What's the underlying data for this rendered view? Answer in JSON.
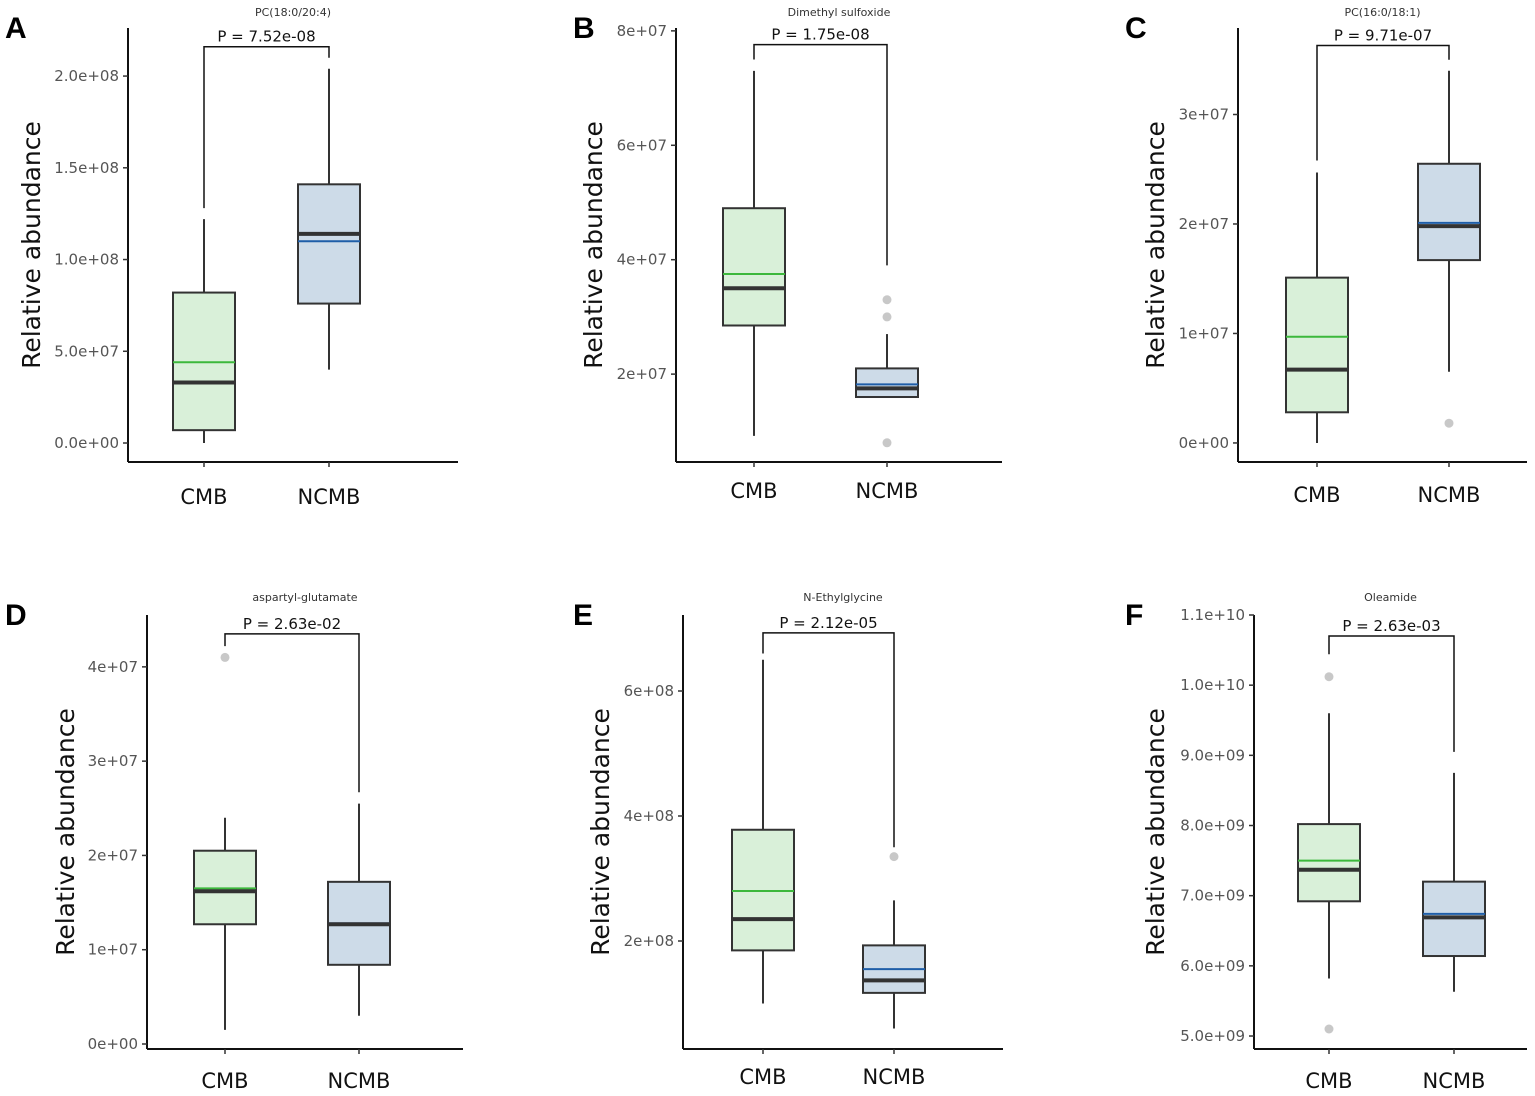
{
  "chart_data": [
    {
      "type": "box",
      "panel": "A",
      "title": "PC(18:0/20:4)",
      "ylabel": "Relative abundance",
      "p_label": "P = 7.52e-08",
      "ylim": [
        -10350000.0,
        226200000.0
      ],
      "yticks": [
        0,
        50000000.0,
        100000000.0,
        150000000.0,
        200000000.0
      ],
      "ytick_labels": [
        "0.0e+00",
        "5.0e+07",
        "1.0e+08",
        "1.5e+08",
        "2.0e+08"
      ],
      "bracket": {
        "y": 216000000.0,
        "left_end": 128000000.0,
        "right_end": 210000000.0
      },
      "categories": [
        "CMB",
        "NCMB"
      ],
      "boxes": [
        {
          "whislo": 0,
          "q1": 7000000.0,
          "med": 33000000.0,
          "mean": 44000000.0,
          "q3": 82000000.0,
          "whishi": 122000000.0,
          "fliers": []
        },
        {
          "whislo": 40000000.0,
          "q1": 76000000.0,
          "med": 114000000.0,
          "mean": 110000000.0,
          "q3": 141000000.0,
          "whishi": 204000000.0,
          "fliers": []
        }
      ]
    },
    {
      "type": "box",
      "panel": "B",
      "title": "Dimethyl sulfoxide",
      "ylabel": "Relative abundance",
      "p_label": "P = 1.75e-08",
      "ylim": [
        4640000.0,
        80500000.0
      ],
      "yticks": [
        20000000.0,
        40000000.0,
        60000000.0,
        80000000.0
      ],
      "ytick_labels": [
        "2e+07",
        "4e+07",
        "6e+07",
        "8e+07"
      ],
      "bracket": {
        "y": 77600000.0,
        "left_end": 75000000.0,
        "right_end": 39000000.0
      },
      "categories": [
        "CMB",
        "NCMB"
      ],
      "boxes": [
        {
          "whislo": 9200000.0,
          "q1": 28500000.0,
          "med": 35000000.0,
          "mean": 37500000.0,
          "q3": 49000000.0,
          "whishi": 73000000.0,
          "fliers": []
        },
        {
          "whislo": 16000000.0,
          "q1": 16000000.0,
          "med": 17500000.0,
          "mean": 18200000.0,
          "q3": 21000000.0,
          "whishi": 27000000.0,
          "fliers": [
            33000000.0,
            30000000.0,
            8000000.0
          ]
        }
      ]
    },
    {
      "type": "box",
      "panel": "C",
      "title": "PC(16:0/18:1)",
      "ylabel": "Relative abundance",
      "p_label": "P = 9.71e-07",
      "ylim": [
        -1740000.0,
        37900000.0
      ],
      "yticks": [
        0,
        10000000.0,
        20000000.0,
        30000000.0
      ],
      "ytick_labels": [
        "0e+00",
        "1e+07",
        "2e+07",
        "3e+07"
      ],
      "bracket": {
        "y": 36300000.0,
        "left_end": 25800000.0,
        "right_end": 35000000.0
      },
      "categories": [
        "CMB",
        "NCMB"
      ],
      "boxes": [
        {
          "whislo": 0,
          "q1": 2800000.0,
          "med": 6700000.0,
          "mean": 9700000.0,
          "q3": 15100000.0,
          "whishi": 24700000.0,
          "fliers": []
        },
        {
          "whislo": 6500000.0,
          "q1": 16700000.0,
          "med": 19800000.0,
          "mean": 20100000.0,
          "q3": 25500000.0,
          "whishi": 34000000.0,
          "fliers": [
            1800000.0
          ]
        }
      ]
    },
    {
      "type": "box",
      "panel": "D",
      "title": "aspartyl-glutamate",
      "ylabel": "Relative abundance",
      "p_label": "P = 2.63e-02",
      "ylim": [
        -530000.0,
        45500000.0
      ],
      "yticks": [
        0,
        10000000.0,
        20000000.0,
        30000000.0,
        40000000.0
      ],
      "ytick_labels": [
        "0e+00",
        "1e+07",
        "2e+07",
        "3e+07",
        "4e+07"
      ],
      "bracket": {
        "y": 43500000.0,
        "left_end": 42200000.0,
        "right_end": 26700000.0
      },
      "categories": [
        "CMB",
        "NCMB"
      ],
      "boxes": [
        {
          "whislo": 1500000.0,
          "q1": 12700000.0,
          "med": 16200000.0,
          "mean": 16500000.0,
          "q3": 20500000.0,
          "whishi": 24000000.0,
          "fliers": [
            41000000.0
          ]
        },
        {
          "whislo": 3000000.0,
          "q1": 8400000.0,
          "med": 12700000.0,
          "mean": 12800000.0,
          "q3": 17200000.0,
          "whishi": 25500000.0,
          "fliers": []
        }
      ]
    },
    {
      "type": "box",
      "panel": "E",
      "title": "N-Ethylglycine",
      "ylabel": "Relative abundance",
      "p_label": "P = 2.12e-05",
      "ylim": [
        27200000.0,
        721600000.0
      ],
      "yticks": [
        200000000.0,
        400000000.0,
        600000000.0
      ],
      "ytick_labels": [
        "2e+08",
        "4e+08",
        "6e+08"
      ],
      "bracket": {
        "y": 693000000.0,
        "left_end": 660000000.0,
        "right_end": 350000000.0
      },
      "categories": [
        "CMB",
        "NCMB"
      ],
      "boxes": [
        {
          "whislo": 100000000.0,
          "q1": 185000000.0,
          "med": 235000000.0,
          "mean": 280000000.0,
          "q3": 378000000.0,
          "whishi": 650000000.0,
          "fliers": []
        },
        {
          "whislo": 60000000.0,
          "q1": 117000000.0,
          "med": 137000000.0,
          "mean": 155000000.0,
          "q3": 193000000.0,
          "whishi": 265000000.0,
          "fliers": [
            335000000.0
          ]
        }
      ]
    },
    {
      "type": "box",
      "panel": "F",
      "title": "Oleamide",
      "ylabel": "Relative abundance",
      "p_label": "P = 2.63e-03",
      "ylim": [
        4815000000.0,
        11000000000.0
      ],
      "yticks": [
        5000000000.0,
        6000000000.0,
        7000000000.0,
        8000000000.0,
        9000000000.0,
        10000000000.0,
        11000000000.0
      ],
      "ytick_labels": [
        "5.0e+09",
        "6.0e+09",
        "7.0e+09",
        "8.0e+09",
        "9.0e+09",
        "1.0e+10",
        "1.1e+10"
      ],
      "bracket": {
        "y": 10700000000.0,
        "left_end": 10440000000.0,
        "right_end": 9050000000.0
      },
      "categories": [
        "CMB",
        "NCMB"
      ],
      "boxes": [
        {
          "whislo": 5820000000.0,
          "q1": 6920000000.0,
          "med": 7370000000.0,
          "mean": 7500000000.0,
          "q3": 8020000000.0,
          "whishi": 9600000000.0,
          "fliers": [
            10120000000.0,
            5100000000.0
          ]
        },
        {
          "whislo": 5630000000.0,
          "q1": 6140000000.0,
          "med": 6690000000.0,
          "mean": 6740000000.0,
          "q3": 7200000000.0,
          "whishi": 8750000000.0,
          "fliers": []
        }
      ]
    }
  ],
  "colors": {
    "cmb_fill": "#d9f0d9",
    "ncmb_fill": "#cddbe8",
    "cmb_mean": "#3cb83c",
    "ncmb_mean": "#1f5ea8",
    "box_stroke": "#333333",
    "flier": "#c8c8c8"
  }
}
